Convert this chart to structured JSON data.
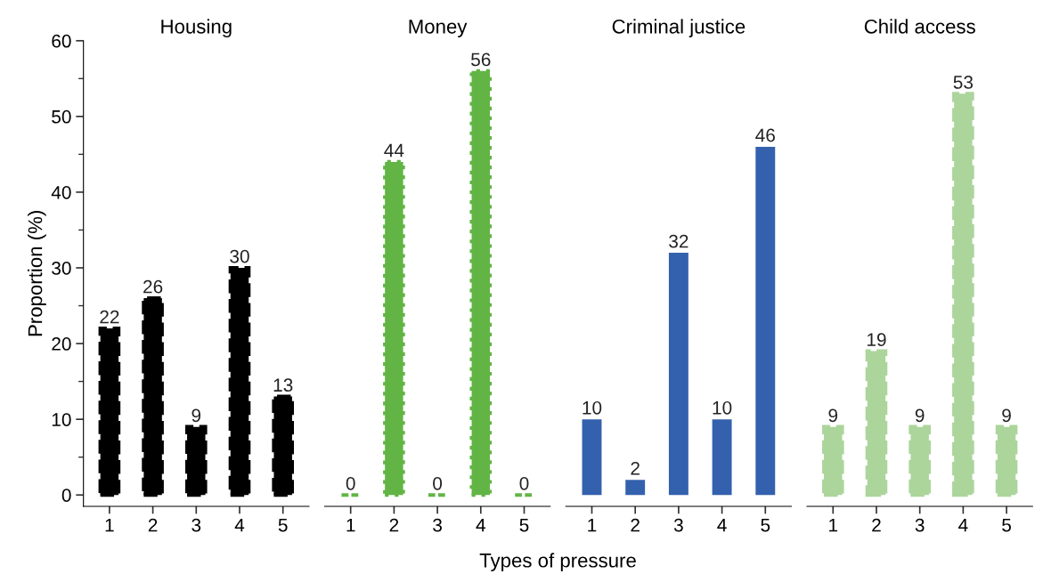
{
  "chart_data": [
    {
      "type": "bar",
      "title": "Housing",
      "ylabel": "Proportion (%)",
      "categories": [
        "1",
        "2",
        "3",
        "4",
        "5"
      ],
      "values": [
        22,
        26,
        9,
        30,
        13
      ],
      "color": "#000000",
      "line_style": "dashed",
      "data_labels": true,
      "ylim": [
        -1.5,
        60
      ],
      "yticks": [
        0,
        10,
        20,
        30,
        40,
        50,
        60
      ],
      "grid": false
    },
    {
      "type": "bar",
      "title": "Money",
      "xlabel": "Types of pressure",
      "categories": [
        "1",
        "2",
        "3",
        "4",
        "5"
      ],
      "values": [
        0,
        44,
        0,
        56,
        0
      ],
      "color": "#62b545",
      "line_style": "dotted",
      "data_labels": true,
      "ylim": [
        -1.5,
        60
      ],
      "tick_labels": "x",
      "grid": false
    },
    {
      "type": "bar",
      "title": "Criminal justice",
      "categories": [
        "1",
        "2",
        "3",
        "4",
        "5"
      ],
      "values": [
        10,
        2,
        32,
        10,
        46
      ],
      "color": "#3461ad",
      "line_style": "solid",
      "data_labels": true,
      "ylim": [
        -1.5,
        60
      ],
      "tick_labels": "x",
      "grid": false
    },
    {
      "type": "bar",
      "title": "Child access",
      "categories": [
        "1",
        "2",
        "3",
        "4",
        "5"
      ],
      "values": [
        9,
        19,
        9,
        53,
        9
      ],
      "color": "#acd59c",
      "line_style": "dashed",
      "data_labels": true,
      "ylim": [
        -1.5,
        60
      ],
      "tick_labels": "x",
      "grid": false
    }
  ]
}
